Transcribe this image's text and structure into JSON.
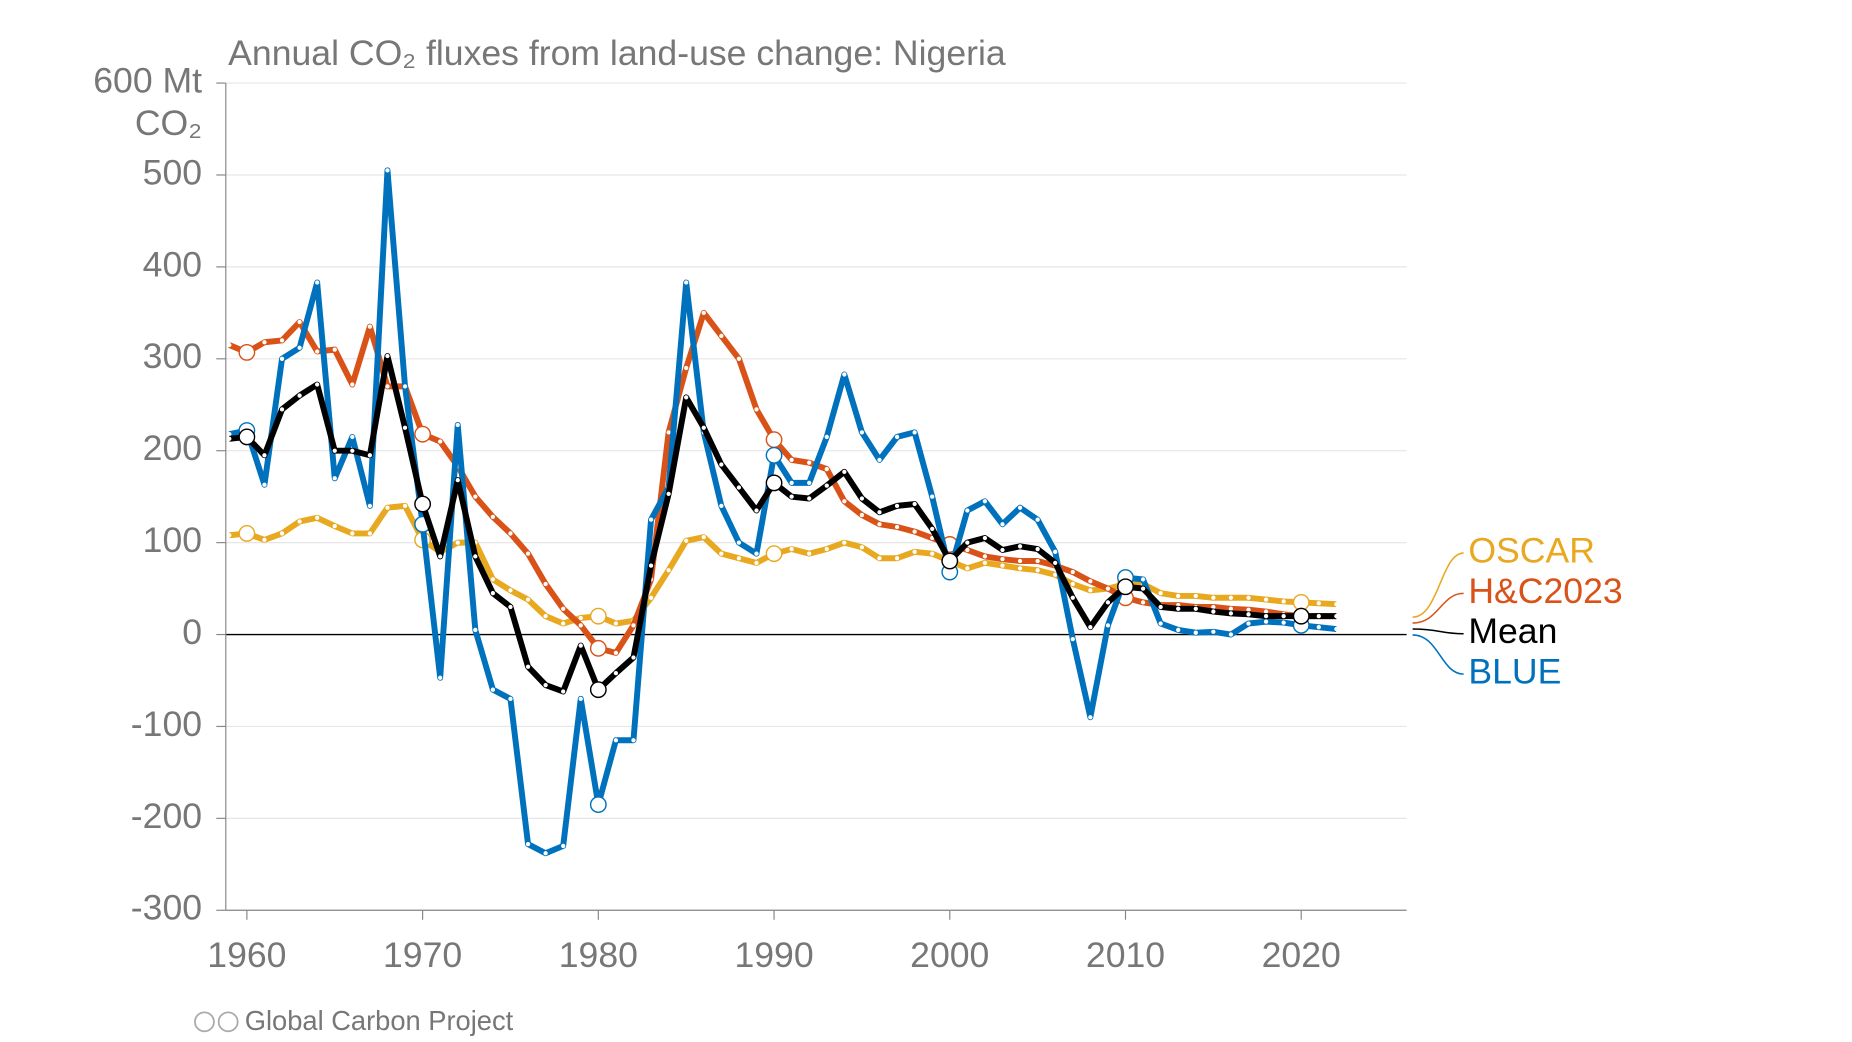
{
  "chart_data": {
    "type": "line",
    "title": "Annual CO₂ fluxes from land-use change: Nigeria",
    "y_unit": "CO₂",
    "source": "Global Carbon Project",
    "x": [
      1959,
      1960,
      1961,
      1962,
      1963,
      1964,
      1965,
      1966,
      1967,
      1968,
      1969,
      1970,
      1971,
      1972,
      1973,
      1974,
      1975,
      1976,
      1977,
      1978,
      1979,
      1980,
      1981,
      1982,
      1983,
      1984,
      1985,
      1986,
      1987,
      1988,
      1989,
      1990,
      1991,
      1992,
      1993,
      1994,
      1995,
      1996,
      1997,
      1998,
      1999,
      2000,
      2001,
      2002,
      2003,
      2004,
      2005,
      2006,
      2007,
      2008,
      2009,
      2010,
      2011,
      2012,
      2013,
      2014,
      2015,
      2016,
      2017,
      2018,
      2019,
      2020,
      2021,
      2022
    ],
    "xlim": [
      1958.8,
      2026
    ],
    "xticks": [
      1960,
      1970,
      1980,
      1990,
      2000,
      2010,
      2020
    ],
    "ylim": [
      -300,
      600
    ],
    "yticks": [
      -300,
      -200,
      -100,
      0,
      100,
      200,
      300,
      400,
      500,
      {
        "value": 600,
        "label": "600 Mt"
      }
    ],
    "grid": true,
    "legend": "right",
    "series": [
      {
        "name": "OSCAR",
        "color": "#e8a820",
        "values": [
          108,
          110,
          103,
          110,
          123,
          127,
          118,
          110,
          110,
          138,
          140,
          103,
          90,
          100,
          100,
          60,
          48,
          38,
          20,
          12,
          18,
          20,
          12,
          15,
          40,
          70,
          102,
          106,
          88,
          83,
          78,
          88,
          93,
          88,
          93,
          100,
          95,
          83,
          83,
          90,
          88,
          80,
          72,
          78,
          75,
          72,
          70,
          65,
          55,
          48,
          50,
          55,
          55,
          45,
          42,
          42,
          40,
          40,
          40,
          38,
          36,
          35,
          34,
          33
        ]
      },
      {
        "name": "H&C2023",
        "color": "#d95319",
        "values": [
          315,
          307,
          318,
          320,
          340,
          308,
          310,
          272,
          335,
          270,
          270,
          218,
          210,
          183,
          150,
          128,
          110,
          88,
          55,
          28,
          10,
          -15,
          -20,
          10,
          60,
          220,
          290,
          350,
          325,
          300,
          245,
          212,
          190,
          187,
          180,
          145,
          130,
          120,
          117,
          112,
          105,
          98,
          92,
          85,
          82,
          80,
          80,
          75,
          68,
          58,
          50,
          40,
          35,
          32,
          32,
          30,
          30,
          28,
          27,
          25,
          22,
          20,
          20,
          20
        ]
      },
      {
        "name": "Mean",
        "color": "#000000",
        "values": [
          213,
          215,
          195,
          245,
          260,
          272,
          200,
          200,
          195,
          303,
          225,
          142,
          85,
          168,
          85,
          45,
          30,
          -35,
          -55,
          -62,
          -12,
          -60,
          -42,
          -25,
          75,
          153,
          258,
          225,
          185,
          160,
          135,
          165,
          150,
          148,
          162,
          177,
          148,
          133,
          140,
          142,
          115,
          80,
          100,
          105,
          92,
          96,
          93,
          78,
          40,
          8,
          35,
          52,
          50,
          30,
          28,
          28,
          25,
          23,
          22,
          20,
          20,
          20,
          20,
          20
        ]
      },
      {
        "name": "BLUE",
        "color": "#0072bd",
        "values": [
          218,
          222,
          163,
          300,
          312,
          383,
          170,
          215,
          140,
          505,
          270,
          120,
          -47,
          228,
          5,
          -60,
          -70,
          -228,
          -238,
          -230,
          -70,
          -185,
          -115,
          -115,
          125,
          160,
          383,
          220,
          140,
          100,
          88,
          195,
          165,
          165,
          215,
          283,
          220,
          190,
          215,
          220,
          150,
          68,
          135,
          145,
          120,
          138,
          125,
          90,
          -5,
          -90,
          10,
          62,
          60,
          12,
          5,
          2,
          3,
          0,
          12,
          14,
          13,
          10,
          8,
          6
        ]
      }
    ]
  }
}
